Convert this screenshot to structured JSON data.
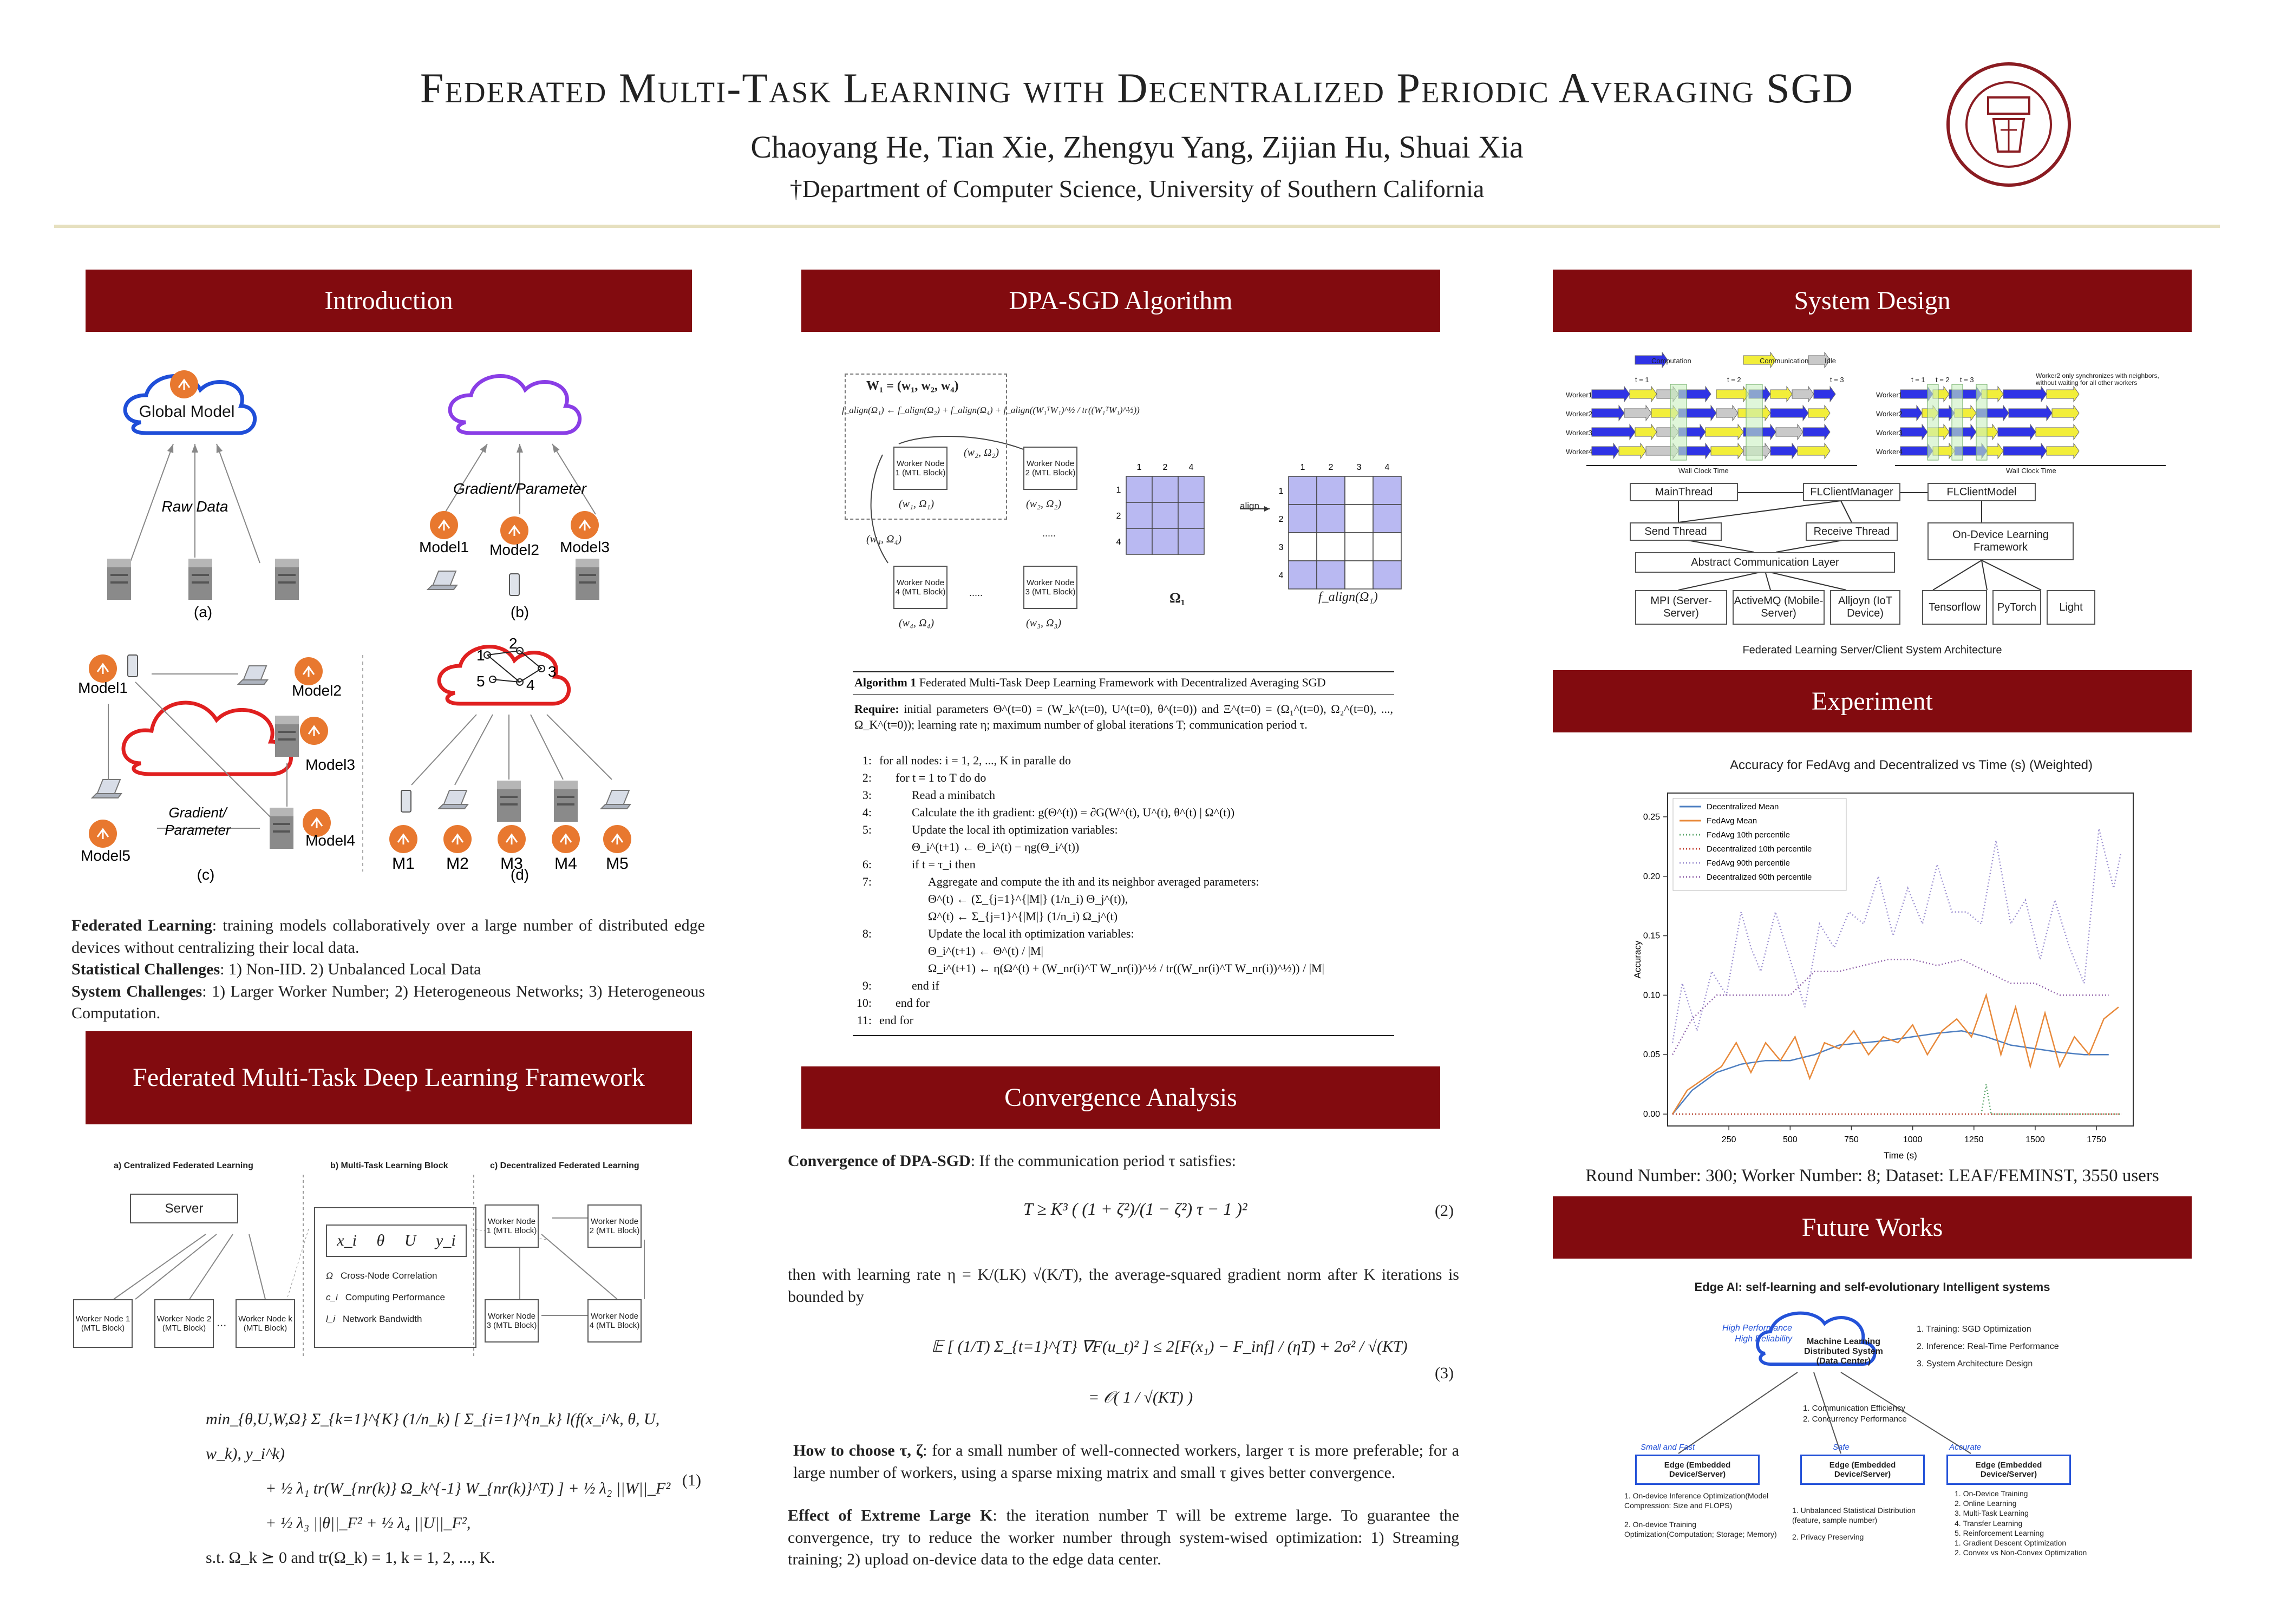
{
  "header": {
    "title": "Federated Multi-Task Learning with Decentralized Periodic Averaging SGD",
    "authors": "Chaoyang He, Tian Xie, Zhengyu Yang, Zijian Hu, Shuai Xia",
    "affiliation": "†Department of Computer Science, University of Southern California",
    "seal_text": "UNIVERSITY OF SOUTHERN CALIFORNIA 1880"
  },
  "sections": {
    "intro": "Introduction",
    "fmtl": "Federated Multi-Task Deep Learning Framework",
    "dpa": "DPA-SGD Algorithm",
    "conv": "Convergence Analysis",
    "system": "System Design",
    "experiment": "Experiment",
    "future": "Future Works"
  },
  "intro": {
    "fig_a": {
      "cloud": "Global Model",
      "edge": "Raw Data",
      "caption": "(a)"
    },
    "fig_b": {
      "edge": "Gradient/Parameter",
      "models": [
        "Model1",
        "Model2",
        "Model3"
      ],
      "caption": "(b)"
    },
    "fig_c": {
      "models": [
        "Model1",
        "Model2",
        "Model3",
        "Model4",
        "Model5"
      ],
      "edge": "Gradient/\nParameter",
      "caption": "(c)"
    },
    "fig_d": {
      "nodes": [
        "1",
        "2",
        "3",
        "4",
        "5"
      ],
      "devices": [
        "M1",
        "M2",
        "M3",
        "M4",
        "M5"
      ],
      "caption": "(d)"
    },
    "p1_label": "Federated Learning",
    "p1_text": ": training models collaboratively over a large number of distributed edge devices without centralizing their local data.",
    "p2_label": "Statistical Challenges",
    "p2_text": ": 1) Non-IID. 2) Unbalanced Local Data",
    "p3_label": "System Challenges",
    "p3_text": ": 1) Larger Worker Number; 2) Heterogeneous Networks; 3) Heterogeneous Computation."
  },
  "fmtl": {
    "panel_a": "a) Centralized Federated Learning",
    "panel_b": "b) Multi-Task Learning Block",
    "panel_c": "c) Decentralized Federated Learning",
    "server": "Server",
    "workers_a": [
      "Worker Node 1 (MTL Block)",
      "Worker Node 2 (MTL Block)",
      "...",
      "Worker Node k (MTL Block)"
    ],
    "block_vars": [
      "x_i",
      "θ",
      "U",
      "y_i"
    ],
    "legend": [
      {
        "sym": "Ω",
        "text": "Cross-Node Correlation"
      },
      {
        "sym": "c_i",
        "text": "Computing Performance"
      },
      {
        "sym": "l_i",
        "text": "Network Bandwidth"
      }
    ],
    "workers_c": [
      "Worker Node 1 (MTL Block)",
      "Worker Node 2 (MTL Block)",
      "Worker Node 3 (MTL Block)",
      "Worker Node 4 (MTL Block)"
    ],
    "objective": [
      "min_{θ,U,W,Ω}  Σ_{k=1}^{K} (1/n_k) [ Σ_{i=1}^{n_k} l(f(x_i^k, θ, U, w_k), y_i^k)",
      "+ ½ λ₁ tr(W_{nr(k)} Ω_k^{-1} W_{nr(k)}^T) ] + ½ λ₂ ||W||_F²",
      "+ ½ λ₃ ||θ||_F² + ½ λ₄ ||U||_F²,",
      "s.t.   Ω_k ⪰ 0   and   tr(Ω_k) = 1,    k = 1, 2, ..., K."
    ],
    "eq_num": "(1)"
  },
  "dpa": {
    "top_eq": "W₁ = (w₁, w₂, w₄)",
    "align_eq": "f_align(Ω₁) ← f_align(Ω₂) + f_align(Ω₄) + f_align((W₁ᵀW₁)^½ / tr((W₁ᵀW₁)^½))",
    "nodes": [
      "Worker Node 1 (MTL Block)",
      "Worker Node 2 (MTL Block)",
      "Worker Node 4 (MTL Block)",
      "Worker Node 3 (MTL Block)"
    ],
    "node_params": [
      "(w₁, Ω₁)",
      "(w₂, Ω₂)",
      "(w₄, Ω₄)",
      "(w₃, Ω₃)"
    ],
    "edge_labels": [
      "(w₂, Ω₂)",
      "(w₄, Ω₄)",
      ".....",
      "....."
    ],
    "matrix_cols": [
      "1",
      "2",
      "4"
    ],
    "matrix_rows": [
      "1",
      "2",
      "4"
    ],
    "matrix_caption": "Ω₁",
    "align_label": "align",
    "aligned_cols": [
      "1",
      "2",
      "3",
      "4"
    ],
    "aligned_rows": [
      "1",
      "2",
      "3",
      "4"
    ],
    "aligned_caption": "f_align(Ω₁)",
    "aligned_cells": [
      [
        1,
        1,
        0,
        1
      ],
      [
        1,
        1,
        0,
        1
      ],
      [
        0,
        0,
        0,
        0
      ],
      [
        1,
        1,
        0,
        1
      ]
    ],
    "alg_title": "Algorithm 1",
    "alg_name": "Federated Multi-Task Deep Learning Framework with Decentralized Averaging SGD",
    "alg_require_label": "Require:",
    "alg_require": "initial parameters Θ^(t=0) = (W_k^(t=0), U^(t=0), θ^(t=0)) and Ξ^(t=0) = (Ω₁^(t=0), Ω₂^(t=0), ..., Ω_K^(t=0)); learning rate η; maximum number of global iterations T; communication period τ.",
    "alg_lines": [
      {
        "n": "1:",
        "indent": 0,
        "text": "for all nodes: i = 1, 2, ..., K in paralle do"
      },
      {
        "n": "2:",
        "indent": 1,
        "text": "for t = 1 to T do do"
      },
      {
        "n": "3:",
        "indent": 2,
        "text": "Read a minibatch"
      },
      {
        "n": "4:",
        "indent": 2,
        "text": "Calculate the ith gradient: g(Θ^(t)) = ∂G(W^(t), U^(t), θ^(t) | Ω^(t))"
      },
      {
        "n": "5:",
        "indent": 2,
        "text": "Update the local ith optimization variables:"
      },
      {
        "n": "",
        "indent": 2,
        "text": "Θ_i^(t+1) ← Θ_i^(t) − ηg(Θ_i^(t))"
      },
      {
        "n": "6:",
        "indent": 2,
        "text": "if t = τ_i then"
      },
      {
        "n": "7:",
        "indent": 3,
        "text": "Aggregate and compute the ith and its neighbor averaged parameters:"
      },
      {
        "n": "",
        "indent": 3,
        "text": "Θ^(t) ← (Σ_{j=1}^{|M|} (1/n_i) Θ_j^(t)),"
      },
      {
        "n": "",
        "indent": 3,
        "text": "Ω^(t) ← Σ_{j=1}^{|M|} (1/n_i) Ω_j^(t)"
      },
      {
        "n": "8:",
        "indent": 3,
        "text": "Update the local ith optimization variables:"
      },
      {
        "n": "",
        "indent": 3,
        "text": "Θ_i^(t+1) ← Θ^(t) / |M|"
      },
      {
        "n": "",
        "indent": 3,
        "text": "Ω_i^(t+1) ← η(Ω^(t) + (W_nr(i)^T W_nr(i))^½ / tr((W_nr(i)^T W_nr(i))^½)) / |M|"
      },
      {
        "n": "9:",
        "indent": 2,
        "text": "end if"
      },
      {
        "n": "10:",
        "indent": 1,
        "text": "end for"
      },
      {
        "n": "11:",
        "indent": 0,
        "text": "end for"
      }
    ]
  },
  "conv": {
    "p1_label": "Convergence of DPA-SGD",
    "p1_text": ": If the communication period τ satisfies:",
    "eq2": "T ≥ K³ ( (1 + ζ²)/(1 − ζ²) τ − 1 )²",
    "eq2_num": "(2)",
    "p2": "then with learning rate η = K/(LK) √(K/T), the average-squared gradient norm after K iterations is bounded by",
    "eq3a": "𝔼 [ (1/T) Σ_{t=1}^{T} ∇F(u_t)² ] ≤ 2[F(x₁) − F_inf] / (ηT) + 2σ² / √(KT)",
    "eq3b": "= 𝒪( 1 / √(KT) )",
    "eq3_num": "(3)",
    "p3_label": "How to choose τ, ζ",
    "p3_text": ": for a small number of well-connected workers, larger τ is more preferable; for a large number of workers, using a sparse mixing matrix and small τ gives better convergence.",
    "p4_label": "Effect of Extreme Large K",
    "p4_text": ": the iteration number T will be extreme large. To guarantee the convergence, try to reduce the worker number through system-wised optimization: 1) Streaming training; 2) upload on-device data to the edge data center."
  },
  "system": {
    "legend": [
      "Computation",
      "Communication",
      "Idle"
    ],
    "workers": [
      "Worker1",
      "Worker2",
      "Worker3",
      "Worker4"
    ],
    "time_left": [
      "t = 1",
      "t = 2",
      "t = 3"
    ],
    "time_right": [
      "t = 1",
      "t = 2",
      "t = 3"
    ],
    "axis_label": "Wall Clock Time",
    "note": "Worker2 only synchronizes with neighbors, without waiting for all other workers",
    "arch": {
      "main_thread": "MainThread",
      "fl_manager": "FLClientManager",
      "fl_model": "FLClientModel",
      "send_thread": "Send Thread",
      "receive_thread": "Receive Thread",
      "abstract_layer": "Abstract Communication Layer",
      "on_device": "On-Device Learning Framework",
      "backends_comm": [
        "MPI (Server-Server)",
        "ActiveMQ (Mobile-Server)",
        "Alljoyn (IoT Device)"
      ],
      "backends_ml": [
        "Tensorflow",
        "PyTorch",
        "Light"
      ]
    },
    "caption": "Federated Learning Server/Client System Architecture"
  },
  "experiment": {
    "caption": "Round Number: 300; Worker Number: 8; Dataset: LEAF/FEMINST, 3550 users"
  },
  "chart_data": {
    "type": "line",
    "title": "Accuracy for FedAvg and Decentralized vs Time (s) (Weighted)",
    "xlabel": "Time (s)",
    "ylabel": "Accuracy",
    "xlim": [
      0,
      1900
    ],
    "ylim": [
      -0.01,
      0.27
    ],
    "xticks": [
      250,
      500,
      750,
      1000,
      1250,
      1500,
      1750
    ],
    "yticks": [
      0.0,
      0.05,
      0.1,
      0.15,
      0.2,
      0.25
    ],
    "legend_position": "top-left",
    "series": [
      {
        "name": "Decentralized Mean",
        "color": "#4e7fc1",
        "dash": "",
        "x": [
          20,
          100,
          200,
          300,
          400,
          500,
          600,
          700,
          800,
          900,
          1000,
          1100,
          1200,
          1300,
          1400,
          1500,
          1600,
          1700,
          1800
        ],
        "y": [
          0.0,
          0.02,
          0.035,
          0.042,
          0.045,
          0.045,
          0.05,
          0.058,
          0.06,
          0.062,
          0.065,
          0.068,
          0.07,
          0.065,
          0.058,
          0.055,
          0.052,
          0.05,
          0.05
        ]
      },
      {
        "name": "FedAvg Mean",
        "color": "#e8893a",
        "dash": "",
        "x": [
          20,
          80,
          150,
          220,
          280,
          340,
          400,
          460,
          520,
          580,
          640,
          700,
          760,
          820,
          880,
          940,
          1000,
          1060,
          1120,
          1180,
          1240,
          1300,
          1360,
          1420,
          1480,
          1540,
          1600,
          1660,
          1720,
          1780,
          1840
        ],
        "y": [
          0.0,
          0.02,
          0.03,
          0.04,
          0.06,
          0.035,
          0.06,
          0.045,
          0.065,
          0.03,
          0.06,
          0.055,
          0.07,
          0.05,
          0.065,
          0.06,
          0.075,
          0.05,
          0.07,
          0.08,
          0.065,
          0.1,
          0.05,
          0.09,
          0.04,
          0.085,
          0.04,
          0.065,
          0.05,
          0.08,
          0.09
        ]
      },
      {
        "name": "FedAvg 10th percentile",
        "color": "#5aa469",
        "dash": "2,4",
        "x": [
          20,
          400,
          800,
          1200,
          1280,
          1300,
          1320,
          1400,
          1600,
          1850
        ],
        "y": [
          0,
          0,
          0,
          0,
          0,
          0.025,
          0,
          0,
          0,
          0
        ]
      },
      {
        "name": "Decentralized 10th percentile",
        "color": "#c0392b",
        "dash": "2,4",
        "x": [
          20,
          1850
        ],
        "y": [
          0,
          0
        ]
      },
      {
        "name": "FedAvg 90th percentile",
        "color": "#9b8fd0",
        "dash": "2,4",
        "x": [
          20,
          60,
          120,
          180,
          240,
          300,
          340,
          380,
          440,
          500,
          560,
          620,
          680,
          740,
          800,
          860,
          920,
          980,
          1040,
          1100,
          1160,
          1220,
          1280,
          1340,
          1400,
          1460,
          1520,
          1580,
          1640,
          1700,
          1760,
          1820,
          1850
        ],
        "y": [
          0.06,
          0.11,
          0.07,
          0.12,
          0.1,
          0.17,
          0.14,
          0.12,
          0.17,
          0.13,
          0.09,
          0.16,
          0.14,
          0.17,
          0.16,
          0.2,
          0.15,
          0.19,
          0.16,
          0.21,
          0.17,
          0.17,
          0.16,
          0.23,
          0.16,
          0.18,
          0.13,
          0.18,
          0.14,
          0.11,
          0.24,
          0.19,
          0.22
        ]
      },
      {
        "name": "Decentralized 90th percentile",
        "color": "#8e5fa8",
        "dash": "2,4",
        "x": [
          20,
          100,
          200,
          300,
          400,
          500,
          600,
          700,
          800,
          900,
          1000,
          1100,
          1200,
          1300,
          1400,
          1500,
          1600,
          1700,
          1800
        ],
        "y": [
          0.05,
          0.08,
          0.1,
          0.1,
          0.1,
          0.1,
          0.12,
          0.12,
          0.125,
          0.13,
          0.13,
          0.125,
          0.13,
          0.12,
          0.11,
          0.11,
          0.1,
          0.1,
          0.1
        ]
      }
    ]
  },
  "future": {
    "title": "Edge AI: self-learning and self-evolutionary Intelligent systems",
    "center": "Machine Learning Distributed System (Data Center)",
    "center_tags": [
      "High Performance",
      "High Reliability"
    ],
    "center_list": [
      "1. Training: SGD Optimization",
      "2. Inference: Real-Time Performance",
      "3. System Architecture Design"
    ],
    "mid_list": [
      "1. Communication Efficiency",
      "2. Concurrency Performance"
    ],
    "edges": [
      {
        "tag": "Small and Fast",
        "title": "Edge (Embedded Device/Server)",
        "items": [
          "1. On-device Inference Optimization(Model Compression: Size and FLOPS)",
          "2. On-device Training Optimization(Computation; Storage; Memory)"
        ]
      },
      {
        "tag": "Safe",
        "title": "Edge (Embedded Device/Server)",
        "items": [
          "1. Unbalanced Statistical Distribution (feature, sample number)",
          "2. Privacy Preserving"
        ]
      },
      {
        "tag": "Accurate",
        "title": "Edge (Embedded Device/Server)",
        "items": [
          "1. On-Device Training",
          "2. Online Learning",
          "3. Multi-Task Learning",
          "4. Transfer Learning",
          "5. Reinforcement Learning",
          "1. Gradient Descent Optimization",
          "2. Convex vs Non-Convex Optimization"
        ]
      }
    ]
  }
}
